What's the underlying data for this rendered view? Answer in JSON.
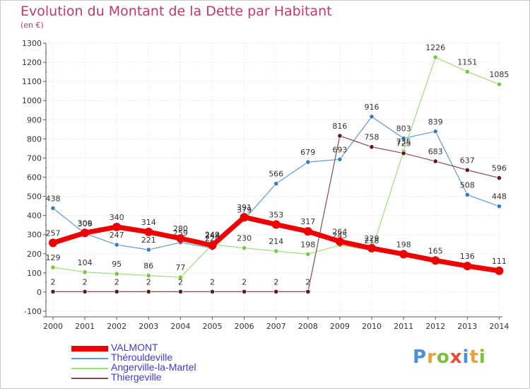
{
  "title": "Evolution du Montant de la Dette par Habitant",
  "unit_label": "(en €)",
  "logo": "Proxiti",
  "chart_data": {
    "type": "line",
    "title": "Evolution du Montant de la Dette par Habitant",
    "ylabel": "(en €)",
    "xlabel": "",
    "ylim": [
      -100,
      1300
    ],
    "yticks": [
      -100,
      0,
      100,
      200,
      300,
      400,
      500,
      600,
      700,
      800,
      900,
      1000,
      1100,
      1200,
      1300
    ],
    "grid": true,
    "legend_position": "bottom-left",
    "x": [
      "2000",
      "2001",
      "2002",
      "2003",
      "2004",
      "2005",
      "2006",
      "2007",
      "2008",
      "2009",
      "2010",
      "2011",
      "2012",
      "2013",
      "2014"
    ],
    "series": [
      {
        "name": "Thérouldeville",
        "color": "#5a9bd5",
        "marker": "#3c7bc0",
        "width": 1.2,
        "radius": 3.2,
        "values": [
          438,
          306,
          247,
          221,
          259,
          229,
          379,
          566,
          679,
          693,
          916,
          803,
          839,
          508,
          448
        ]
      },
      {
        "name": "Angerville-la-Martel",
        "color": "#9be07a",
        "marker": "#76c83f",
        "width": 1.2,
        "radius": 3.2,
        "values": [
          129,
          104,
          95,
          86,
          77,
          249,
          230,
          214,
          198,
          245,
          218,
          735,
          1226,
          1151,
          1085
        ]
      },
      {
        "name": "Thiergeville",
        "color": "#8b4a4a",
        "marker": "#5e1e1e",
        "width": 1.2,
        "radius": 3.2,
        "values": [
          2,
          2,
          2,
          2,
          2,
          2,
          2,
          2,
          2,
          816,
          758,
          725,
          683,
          637,
          596
        ]
      },
      {
        "name": "VALMONT",
        "color": "#ee0000",
        "marker": "#ee0000",
        "width": 7,
        "radius": 6,
        "values": [
          257,
          309,
          340,
          314,
          280,
          244,
          391,
          353,
          317,
          264,
          229,
          198,
          165,
          136,
          111
        ]
      }
    ],
    "legend_order": [
      "VALMONT",
      "Thérouldeville",
      "Angerville-la-Martel",
      "Thiergeville"
    ]
  }
}
